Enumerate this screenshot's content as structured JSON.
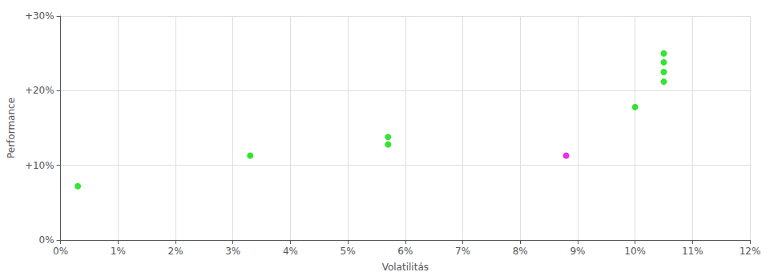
{
  "chart_data": {
    "type": "scatter",
    "xlabel": "Volatilitás",
    "ylabel": "Performance",
    "xlim": [
      0,
      0.12
    ],
    "ylim": [
      0,
      0.3
    ],
    "xticks": [
      {
        "value": 0.0,
        "label": "0%"
      },
      {
        "value": 0.01,
        "label": "1%"
      },
      {
        "value": 0.02,
        "label": "2%"
      },
      {
        "value": 0.03,
        "label": "3%"
      },
      {
        "value": 0.04,
        "label": "4%"
      },
      {
        "value": 0.05,
        "label": "5%"
      },
      {
        "value": 0.06,
        "label": "6%"
      },
      {
        "value": 0.07,
        "label": "7%"
      },
      {
        "value": 0.08,
        "label": "8%"
      },
      {
        "value": 0.09,
        "label": "9%"
      },
      {
        "value": 0.1,
        "label": "10%"
      },
      {
        "value": 0.11,
        "label": "11%"
      },
      {
        "value": 0.12,
        "label": "12%"
      }
    ],
    "yticks": [
      {
        "value": 0.0,
        "label": "0%"
      },
      {
        "value": 0.1,
        "label": "+10%"
      },
      {
        "value": 0.2,
        "label": "+20%"
      },
      {
        "value": 0.3,
        "label": "+30%"
      }
    ],
    "grid": true,
    "series": [
      {
        "color": "#00dd00",
        "x": [
          0.003,
          0.033,
          0.057,
          0.057,
          0.1,
          0.105,
          0.105,
          0.105,
          0.105
        ],
        "values": [
          0.072,
          0.113,
          0.138,
          0.128,
          0.178,
          0.25,
          0.238,
          0.225,
          0.212
        ]
      },
      {
        "color": "#dd00dd",
        "x": [
          0.088
        ],
        "values": [
          0.113
        ]
      }
    ]
  }
}
